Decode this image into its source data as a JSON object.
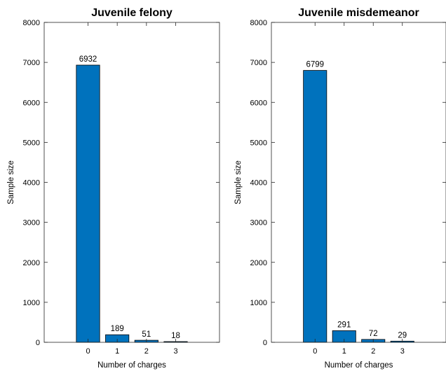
{
  "chart_data": [
    {
      "type": "bar",
      "title": "Juvenile felony",
      "xlabel": "Number of charges",
      "ylabel": "Sample size",
      "categories": [
        "0",
        "1",
        "2",
        "3"
      ],
      "values": [
        6932,
        189,
        51,
        18
      ],
      "data_labels": [
        "6932",
        "189",
        "51",
        "18"
      ],
      "ylim": [
        0,
        8000
      ],
      "yticks": [
        0,
        1000,
        2000,
        3000,
        4000,
        5000,
        6000,
        7000,
        8000
      ],
      "xlim": [
        -1.5,
        4.5
      ],
      "bar_color": "#0072BD",
      "grid": false,
      "legend": "none"
    },
    {
      "type": "bar",
      "title": "Juvenile misdemeanor",
      "xlabel": "Number of charges",
      "ylabel": "Sample size",
      "categories": [
        "0",
        "1",
        "2",
        "3"
      ],
      "values": [
        6799,
        291,
        72,
        29
      ],
      "data_labels": [
        "6799",
        "291",
        "72",
        "29"
      ],
      "ylim": [
        0,
        8000
      ],
      "yticks": [
        0,
        1000,
        2000,
        3000,
        4000,
        5000,
        6000,
        7000,
        8000
      ],
      "xlim": [
        -1.5,
        4.5
      ],
      "bar_color": "#0072BD",
      "grid": false,
      "legend": "none"
    }
  ]
}
